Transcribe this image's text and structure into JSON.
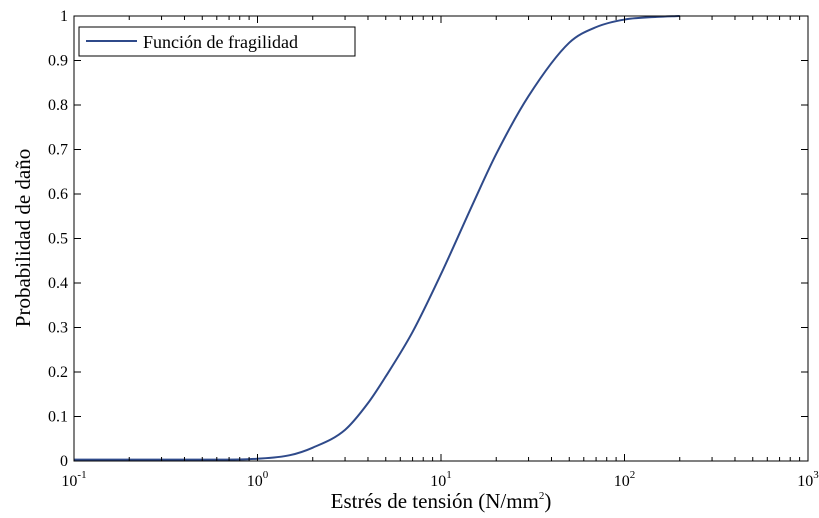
{
  "chart_data": {
    "type": "line",
    "title": "",
    "xlabel": "Estrés de tensión (N/mm²)",
    "xlabel_base": "Estrés de tensión (N/mm",
    "xlabel_sup": "2",
    "xlabel_tail": ")",
    "ylabel": "Probabilidad de daño",
    "xscale": "log",
    "xlim": [
      0.1,
      1000
    ],
    "ylim": [
      0,
      1
    ],
    "xticks": [
      {
        "base": "10",
        "exp": "-1",
        "value": 0.1
      },
      {
        "base": "10",
        "exp": "0",
        "value": 1
      },
      {
        "base": "10",
        "exp": "1",
        "value": 10
      },
      {
        "base": "10",
        "exp": "2",
        "value": 100
      },
      {
        "base": "10",
        "exp": "3",
        "value": 1000
      }
    ],
    "yticks": [
      "0",
      "0.1",
      "0.2",
      "0.3",
      "0.4",
      "0.5",
      "0.6",
      "0.7",
      "0.8",
      "0.9",
      "1"
    ],
    "grid": false,
    "legend_position": "top-left",
    "series": [
      {
        "name": "Función de fragilidad",
        "color": "#2f4a8a",
        "x": [
          0.1,
          0.3,
          0.6,
          1,
          1.5,
          2,
          3,
          4,
          5,
          7,
          10,
          15,
          20,
          30,
          50,
          70,
          100,
          150,
          200
        ],
        "y": [
          0.003,
          0.003,
          0.003,
          0.005,
          0.013,
          0.03,
          0.07,
          0.13,
          0.19,
          0.29,
          0.42,
          0.58,
          0.69,
          0.82,
          0.94,
          0.975,
          0.992,
          0.998,
          1.0
        ]
      }
    ]
  }
}
